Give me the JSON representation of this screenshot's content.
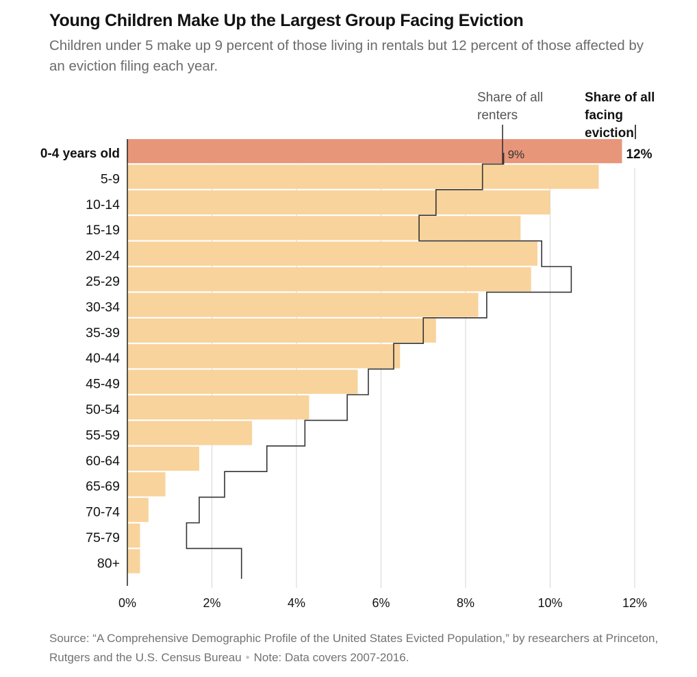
{
  "chart_data": {
    "type": "bar",
    "title": "Young Children Make Up the Largest Group Facing Eviction",
    "subtitle": "Children under 5 make up 9 percent of those living in rentals but 12 percent of those affected by an eviction filing each year.",
    "categories": [
      "0-4 years old",
      "5-9",
      "10-14",
      "15-19",
      "20-24",
      "25-29",
      "30-34",
      "35-39",
      "40-44",
      "45-49",
      "50-54",
      "55-59",
      "60-64",
      "65-69",
      "70-74",
      "75-79",
      "80+"
    ],
    "series": [
      {
        "name": "Share of all facing eviction",
        "display": "bars",
        "values": [
          11.7,
          11.15,
          10.0,
          9.3,
          9.7,
          9.55,
          8.3,
          7.3,
          6.45,
          5.45,
          4.3,
          2.95,
          1.7,
          0.9,
          0.5,
          0.3,
          0.3
        ]
      },
      {
        "name": "Share of all renters",
        "display": "step-line",
        "values": [
          8.9,
          8.4,
          7.3,
          6.9,
          9.8,
          10.5,
          8.5,
          7.0,
          6.3,
          5.7,
          5.2,
          4.2,
          3.3,
          2.3,
          1.7,
          1.4,
          2.7
        ]
      }
    ],
    "highlight_category": "0-4 years old",
    "highlight_value_label": "12%",
    "highlight_renters_label": "9%",
    "x_ticks": [
      "0%",
      "2%",
      "4%",
      "6%",
      "8%",
      "10%",
      "12%"
    ],
    "xlim": [
      0,
      12
    ],
    "grid": true,
    "colors": {
      "highlight_bar": "#E8967A",
      "bar": "#F8D39C",
      "renters_line": "#333333",
      "grid": "#d4d4d4"
    },
    "annotations": {
      "renters": "Share of all renters",
      "eviction": "Share of all facing eviction"
    },
    "source": "Source: “A Comprehensive Demographic Profile of the United States Evicted Population,” by researchers at Princeton, Rutgers and the U.S. Census Bureau",
    "note": "Note: Data covers 2007-2016."
  }
}
